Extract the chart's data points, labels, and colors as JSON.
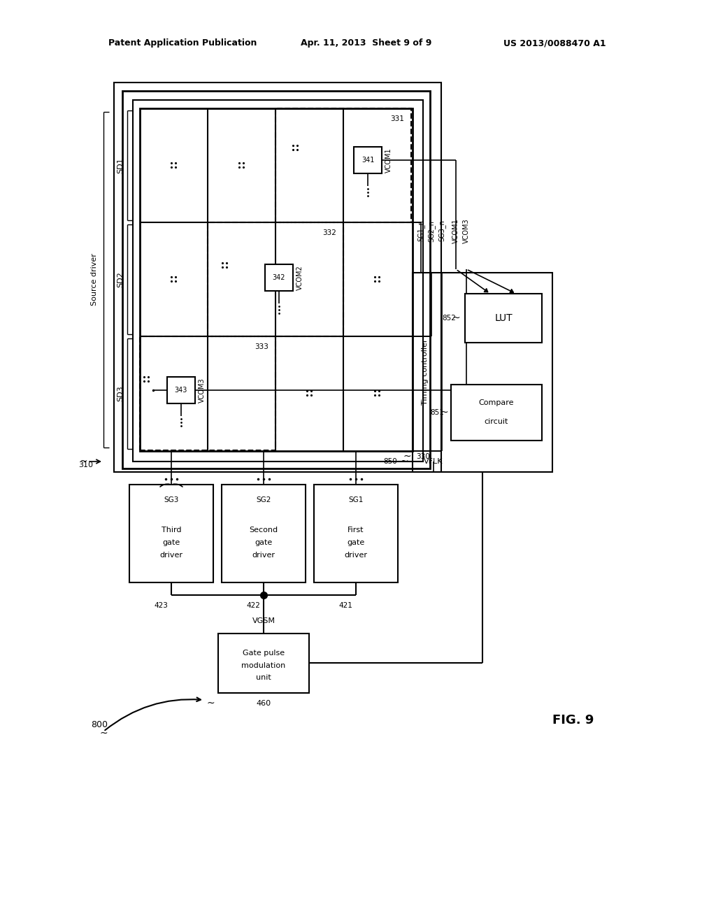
{
  "header_left": "Patent Application Publication",
  "header_mid": "Apr. 11, 2013  Sheet 9 of 9",
  "header_right": "US 2013/0088470 A1",
  "fig_label": "FIG. 9"
}
